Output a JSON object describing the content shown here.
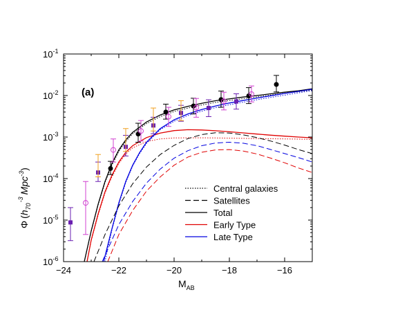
{
  "chart_data": {
    "type": "line",
    "panel_label": "(a)",
    "xlabel": {
      "main": "M",
      "sub": "AB"
    },
    "ylabel": {
      "phi": "Φ",
      "open": "(",
      "h": "h",
      "h_sub": "70",
      "h_exp": "-3",
      "mpc": "Mpc",
      "mpc_exp": "-3",
      "close": ")"
    },
    "xlim": [
      -24,
      -15
    ],
    "ylim_log10": [
      -6,
      -1
    ],
    "xticks": [
      {
        "value": -24,
        "label": "−24"
      },
      {
        "value": -22,
        "label": "−22"
      },
      {
        "value": -20,
        "label": "−20"
      },
      {
        "value": -18,
        "label": "−18"
      },
      {
        "value": -16,
        "label": "−16"
      }
    ],
    "yticks": [
      {
        "exp": -6,
        "base": "10",
        "sup": "-6"
      },
      {
        "exp": -5,
        "base": "10",
        "sup": "-5"
      },
      {
        "exp": -4,
        "base": "10",
        "sup": "-4"
      },
      {
        "exp": -3,
        "base": "10",
        "sup": "-3"
      },
      {
        "exp": -2,
        "base": "10",
        "sup": "-2"
      },
      {
        "exp": -1,
        "base": "10",
        "sup": "-1"
      }
    ],
    "legend_position": "lower-right",
    "legend": [
      {
        "label": "Central galaxies",
        "color": "#000000",
        "dash": "dotted"
      },
      {
        "label": "Satellites",
        "color": "#000000",
        "dash": "dashed"
      },
      {
        "label": "Total",
        "color": "#000000",
        "dash": "solid"
      },
      {
        "label": "Early Type",
        "color": "#e00000",
        "dash": "solid"
      },
      {
        "label": "Late Type",
        "color": "#0000e0",
        "dash": "solid"
      }
    ],
    "series": [
      {
        "group": "total",
        "component": "total",
        "color": "#000000",
        "dash": "solid",
        "x": [
          -23.25,
          -23.0,
          -22.75,
          -22.5,
          -22.25,
          -22.0,
          -21.75,
          -21.5,
          -21.0,
          -20.5,
          -20.0,
          -19.5,
          -19.0,
          -18.5,
          -18.0,
          -17.5,
          -17.0,
          -16.5,
          -16.0,
          -15.5,
          -15.0
        ],
        "y": [
          1e-06,
          5.5e-06,
          2.4e-05,
          8.5e-05,
          0.00023,
          0.00049,
          0.00085,
          0.0013,
          0.0023,
          0.0034,
          0.0045,
          0.0055,
          0.0065,
          0.0075,
          0.0083,
          0.0092,
          0.01,
          0.011,
          0.012,
          0.013,
          0.0145
        ]
      },
      {
        "group": "total",
        "component": "centrals",
        "color": "#000000",
        "dash": "dotted",
        "x": [
          -23.25,
          -23.0,
          -22.75,
          -22.5,
          -22.25,
          -22.0,
          -21.75,
          -21.5,
          -21.0,
          -20.5,
          -20.0,
          -19.5,
          -19.0,
          -18.5,
          -18.0,
          -17.5,
          -17.0,
          -16.5,
          -16.0,
          -15.5,
          -15.0
        ],
        "y": [
          1e-06,
          5.3e-06,
          2.3e-05,
          8e-05,
          0.00021,
          0.00045,
          0.00078,
          0.0012,
          0.0021,
          0.0031,
          0.0041,
          0.005,
          0.0059,
          0.0068,
          0.0076,
          0.0084,
          0.0093,
          0.0103,
          0.0113,
          0.0123,
          0.0137
        ]
      },
      {
        "group": "early",
        "component": "total",
        "color": "#e00000",
        "dash": "solid",
        "x": [
          -23.15,
          -23.0,
          -22.75,
          -22.5,
          -22.25,
          -22.0,
          -21.75,
          -21.5,
          -21.0,
          -20.5,
          -20.0,
          -19.5,
          -19.0,
          -18.5,
          -18.0,
          -17.5,
          -17.0,
          -16.5,
          -16.0,
          -15.5,
          -15.0
        ],
        "y": [
          1e-06,
          3.3e-06,
          1.4e-05,
          4.8e-05,
          0.00012,
          0.00025,
          0.00043,
          0.00062,
          0.00097,
          0.00125,
          0.00143,
          0.0015,
          0.00148,
          0.00142,
          0.00134,
          0.00126,
          0.00118,
          0.00111,
          0.00105,
          0.001,
          0.00096
        ]
      },
      {
        "group": "early",
        "component": "centrals",
        "color": "#e00000",
        "dash": "dotted",
        "x": [
          -23.15,
          -23.0,
          -22.75,
          -22.5,
          -22.25,
          -22.0,
          -21.75,
          -21.5,
          -21.0,
          -20.5,
          -20.0,
          -19.5,
          -19.0,
          -18.5,
          -18.0,
          -17.5,
          -17.0,
          -16.5,
          -16.0,
          -15.5,
          -15.0
        ],
        "y": [
          1e-06,
          3.2e-06,
          1.3e-05,
          4.5e-05,
          0.00011,
          0.00023,
          0.00039,
          0.00055,
          0.00078,
          0.0009,
          0.00095,
          0.00096,
          0.00096,
          0.00095,
          0.00094,
          0.00093,
          0.00092,
          0.00091,
          0.0009,
          0.00089,
          0.00088
        ]
      },
      {
        "group": "late",
        "component": "total",
        "color": "#0000e0",
        "dash": "solid",
        "x": [
          -22.55,
          -22.25,
          -22.0,
          -21.75,
          -21.5,
          -21.25,
          -21.0,
          -20.5,
          -20.0,
          -19.5,
          -19.0,
          -18.5,
          -18.0,
          -17.5,
          -17.0,
          -16.5,
          -16.0,
          -15.5,
          -15.0
        ],
        "y": [
          1e-06,
          6.2e-06,
          2.6e-05,
          8.5e-05,
          0.00021,
          0.00042,
          0.00075,
          0.0016,
          0.0026,
          0.0036,
          0.0046,
          0.0056,
          0.0066,
          0.0076,
          0.0087,
          0.0099,
          0.0112,
          0.0126,
          0.0142
        ]
      },
      {
        "group": "late",
        "component": "centrals",
        "color": "#0000e0",
        "dash": "dotted",
        "x": [
          -22.5,
          -22.25,
          -22.0,
          -21.75,
          -21.5,
          -21.25,
          -21.0,
          -20.5,
          -20.0,
          -19.5,
          -19.0,
          -18.5,
          -18.0,
          -17.5,
          -17.0,
          -16.5,
          -16.0,
          -15.5,
          -15.0
        ],
        "y": [
          1e-06,
          5.8e-06,
          2.4e-05,
          8e-05,
          0.0002,
          0.0004,
          0.0007,
          0.0015,
          0.0024,
          0.0033,
          0.0042,
          0.0051,
          0.006,
          0.0069,
          0.0079,
          0.009,
          0.0102,
          0.0116,
          0.0131
        ]
      },
      {
        "group": "total",
        "component": "satellites",
        "color": "#000000",
        "dash": "dashed",
        "x": [
          -22.9,
          -22.5,
          -22.0,
          -21.5,
          -21.0,
          -20.5,
          -20.0,
          -19.5,
          -19.0,
          -18.5,
          -18.0,
          -17.5,
          -17.0,
          -16.5,
          -16.0,
          -15.5,
          -15.0
        ],
        "y": [
          1e-06,
          4.5e-06,
          2.2e-05,
          7.5e-05,
          0.00019,
          0.00038,
          0.00063,
          0.00092,
          0.00115,
          0.00127,
          0.00125,
          0.00113,
          0.00097,
          0.0008,
          0.00064,
          0.0005,
          0.0004
        ]
      },
      {
        "group": "late",
        "component": "satellites",
        "color": "#0000e0",
        "dash": "dashed",
        "x": [
          -22.6,
          -22.0,
          -21.5,
          -21.0,
          -20.5,
          -20.0,
          -19.5,
          -19.0,
          -18.5,
          -18.0,
          -17.5,
          -17.0,
          -16.5,
          -16.0,
          -15.5,
          -15.0
        ],
        "y": [
          1e-06,
          7.8e-06,
          2.8e-05,
          7.8e-05,
          0.00017,
          0.00031,
          0.00047,
          0.00062,
          0.00072,
          0.00075,
          0.00071,
          0.00062,
          0.0005,
          0.0004,
          0.00032,
          0.00025
        ]
      },
      {
        "group": "early",
        "component": "satellites",
        "color": "#e00000",
        "dash": "dashed",
        "x": [
          -22.4,
          -22.0,
          -21.5,
          -21.0,
          -20.5,
          -20.0,
          -19.5,
          -19.0,
          -18.5,
          -18.0,
          -17.5,
          -17.0,
          -16.5,
          -16.0,
          -15.5,
          -15.0
        ],
        "y": [
          1e-06,
          4.5e-06,
          1.7e-05,
          5e-05,
          0.00011,
          0.00021,
          0.00033,
          0.00043,
          0.00049,
          0.0005,
          0.00046,
          0.00039,
          0.00031,
          0.00024,
          0.00018,
          0.00014
        ]
      }
    ],
    "observations": [
      {
        "name": "black-filled-circles",
        "marker": "filled-circle",
        "color": "#000000",
        "points": [
          {
            "x": -22.3,
            "y": 0.000175,
            "lo": 0.000125,
            "hi": 0.00026
          },
          {
            "x": -21.3,
            "y": 0.00118,
            "lo": 0.00075,
            "hi": 0.00215
          },
          {
            "x": -20.3,
            "y": 0.004,
            "lo": 0.0027,
            "hi": 0.0062
          },
          {
            "x": -19.3,
            "y": 0.0056,
            "lo": 0.0036,
            "hi": 0.0086
          },
          {
            "x": -18.3,
            "y": 0.008,
            "lo": 0.0052,
            "hi": 0.0128
          },
          {
            "x": -17.3,
            "y": 0.0098,
            "lo": 0.0064,
            "hi": 0.0155
          },
          {
            "x": -16.3,
            "y": 0.0185,
            "lo": 0.0122,
            "hi": 0.0305
          }
        ]
      },
      {
        "name": "purple-filled-squares",
        "marker": "filled-square",
        "color": "#6a1fb0",
        "points": [
          {
            "x": -23.75,
            "y": 8.8e-06,
            "lo": 3.2e-06,
            "hi": 2e-05
          },
          {
            "x": -22.75,
            "y": 0.00014,
            "lo": 8.5e-05,
            "hi": 0.00025
          },
          {
            "x": -21.75,
            "y": 0.00058,
            "lo": 0.00035,
            "hi": 0.0011
          },
          {
            "x": -20.75,
            "y": 0.0019,
            "lo": 0.0012,
            "hi": 0.003
          },
          {
            "x": -19.75,
            "y": 0.0038,
            "lo": 0.0024,
            "hi": 0.0058
          },
          {
            "x": -18.75,
            "y": 0.005,
            "lo": 0.0031,
            "hi": 0.0079
          },
          {
            "x": -17.75,
            "y": 0.0072,
            "lo": 0.0047,
            "hi": 0.011
          }
        ]
      },
      {
        "name": "magenta-open-circles",
        "marker": "open-circle",
        "color": "#d040d0",
        "points": [
          {
            "x": -23.2,
            "y": 2.6e-05,
            "lo": 4.5e-06,
            "hi": 8.5e-05
          },
          {
            "x": -22.2,
            "y": 0.00049,
            "lo": 0.00025,
            "hi": 0.0009
          },
          {
            "x": -21.2,
            "y": 0.0014,
            "lo": 0.0008,
            "hi": 0.0025
          },
          {
            "x": -20.2,
            "y": 0.0031,
            "lo": 0.0018,
            "hi": 0.0052
          },
          {
            "x": -19.2,
            "y": 0.0051,
            "lo": 0.003,
            "hi": 0.0085
          },
          {
            "x": -18.2,
            "y": 0.0073,
            "lo": 0.0045,
            "hi": 0.012
          },
          {
            "x": -17.2,
            "y": 0.0108,
            "lo": 0.007,
            "hi": 0.017
          }
        ]
      },
      {
        "name": "orange-error-bars",
        "marker": "none",
        "color": "#f0a020",
        "points": [
          {
            "x": -22.75,
            "y": 0.00018,
            "lo": 0.00011,
            "hi": 0.00038
          },
          {
            "x": -21.75,
            "y": 0.00085,
            "lo": 0.00045,
            "hi": 0.0016
          },
          {
            "x": -20.75,
            "y": 0.0026,
            "lo": 0.0014,
            "hi": 0.005
          },
          {
            "x": -19.75,
            "y": 0.0045,
            "lo": 0.0025,
            "hi": 0.0075
          }
        ]
      }
    ]
  }
}
